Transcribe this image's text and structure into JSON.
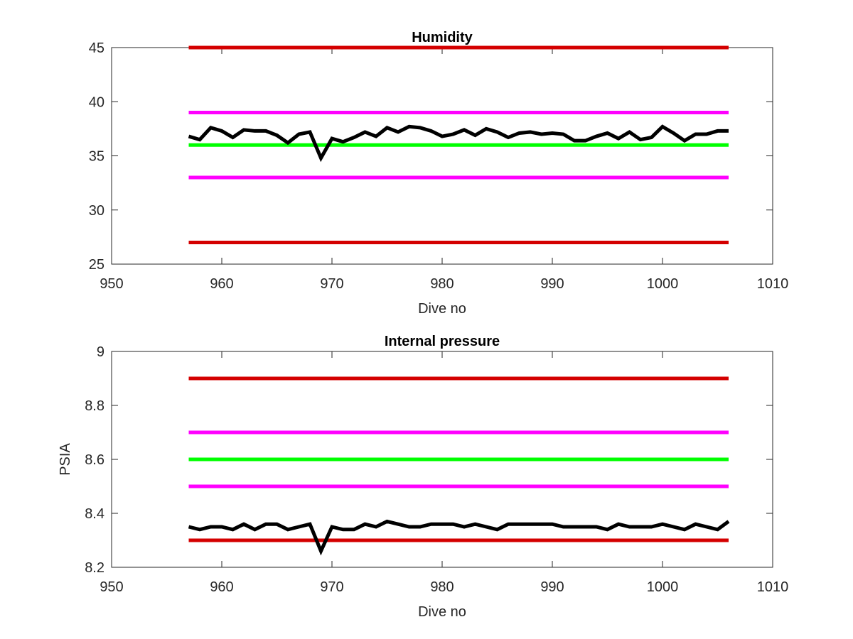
{
  "chart_data": [
    {
      "type": "line",
      "title": "Humidity",
      "xlabel": "Dive no",
      "ylabel": "",
      "xlim": [
        950,
        1010
      ],
      "ylim": [
        25,
        45
      ],
      "xticks": [
        950,
        960,
        970,
        980,
        990,
        1000,
        1010
      ],
      "yticks": [
        25,
        30,
        35,
        40,
        45
      ],
      "xtick_labels": [
        "950",
        "960",
        "970",
        "980",
        "990",
        "1000",
        "1010"
      ],
      "ytick_labels": [
        "25",
        "30",
        "35",
        "40",
        "45"
      ],
      "grid": false,
      "reference_lines": [
        {
          "y": 45,
          "color": "#d40000",
          "x": [
            957,
            1006
          ]
        },
        {
          "y": 39,
          "color": "#ff00ff",
          "x": [
            957,
            1006
          ]
        },
        {
          "y": 36,
          "color": "#00ff00",
          "x": [
            957,
            1006
          ]
        },
        {
          "y": 33,
          "color": "#ff00ff",
          "x": [
            957,
            1006
          ]
        },
        {
          "y": 27,
          "color": "#d40000",
          "x": [
            957,
            1006
          ]
        }
      ],
      "series": [
        {
          "color": "#000000",
          "x": [
            957,
            958,
            959,
            960,
            961,
            962,
            963,
            964,
            965,
            966,
            967,
            968,
            969,
            970,
            971,
            972,
            973,
            974,
            975,
            976,
            977,
            978,
            979,
            980,
            981,
            982,
            983,
            984,
            985,
            986,
            987,
            988,
            989,
            990,
            991,
            992,
            993,
            994,
            995,
            996,
            997,
            998,
            999,
            1000,
            1001,
            1002,
            1003,
            1004,
            1005,
            1006
          ],
          "values": [
            36.8,
            36.5,
            37.6,
            37.3,
            36.7,
            37.4,
            37.3,
            37.3,
            36.9,
            36.2,
            37.0,
            37.2,
            34.8,
            36.6,
            36.3,
            36.7,
            37.2,
            36.8,
            37.6,
            37.2,
            37.7,
            37.6,
            37.3,
            36.8,
            37.0,
            37.4,
            36.9,
            37.5,
            37.2,
            36.7,
            37.1,
            37.2,
            37.0,
            37.1,
            37.0,
            36.4,
            36.4,
            36.8,
            37.1,
            36.6,
            37.2,
            36.5,
            36.7,
            37.7,
            37.1,
            36.4,
            37.0,
            37.0,
            37.3,
            37.3
          ]
        }
      ]
    },
    {
      "type": "line",
      "title": "Internal pressure",
      "xlabel": "Dive no",
      "ylabel": "PSIA",
      "xlim": [
        950,
        1010
      ],
      "ylim": [
        8.2,
        9.0
      ],
      "xticks": [
        950,
        960,
        970,
        980,
        990,
        1000,
        1010
      ],
      "yticks": [
        8.2,
        8.4,
        8.6,
        8.8,
        9.0
      ],
      "xtick_labels": [
        "950",
        "960",
        "970",
        "980",
        "990",
        "1000",
        "1010"
      ],
      "ytick_labels": [
        "8.2",
        "8.4",
        "8.6",
        "8.8",
        "9"
      ],
      "grid": false,
      "reference_lines": [
        {
          "y": 8.9,
          "color": "#d40000",
          "x": [
            957,
            1006
          ]
        },
        {
          "y": 8.7,
          "color": "#ff00ff",
          "x": [
            957,
            1006
          ]
        },
        {
          "y": 8.6,
          "color": "#00ff00",
          "x": [
            957,
            1006
          ]
        },
        {
          "y": 8.5,
          "color": "#ff00ff",
          "x": [
            957,
            1006
          ]
        },
        {
          "y": 8.3,
          "color": "#d40000",
          "x": [
            957,
            1006
          ]
        }
      ],
      "series": [
        {
          "color": "#000000",
          "x": [
            957,
            958,
            959,
            960,
            961,
            962,
            963,
            964,
            965,
            966,
            967,
            968,
            969,
            970,
            971,
            972,
            973,
            974,
            975,
            976,
            977,
            978,
            979,
            980,
            981,
            982,
            983,
            984,
            985,
            986,
            987,
            988,
            989,
            990,
            991,
            992,
            993,
            994,
            995,
            996,
            997,
            998,
            999,
            1000,
            1001,
            1002,
            1003,
            1004,
            1005,
            1006
          ],
          "values": [
            8.35,
            8.34,
            8.35,
            8.35,
            8.34,
            8.36,
            8.34,
            8.36,
            8.36,
            8.34,
            8.35,
            8.36,
            8.26,
            8.35,
            8.34,
            8.34,
            8.36,
            8.35,
            8.37,
            8.36,
            8.35,
            8.35,
            8.36,
            8.36,
            8.36,
            8.35,
            8.36,
            8.35,
            8.34,
            8.36,
            8.36,
            8.36,
            8.36,
            8.36,
            8.35,
            8.35,
            8.35,
            8.35,
            8.34,
            8.36,
            8.35,
            8.35,
            8.35,
            8.36,
            8.35,
            8.34,
            8.36,
            8.35,
            8.34,
            8.37
          ]
        }
      ]
    }
  ]
}
